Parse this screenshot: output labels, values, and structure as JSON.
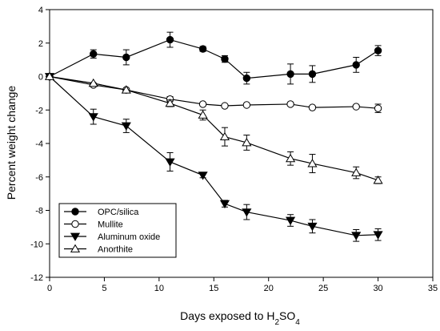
{
  "chart_data": {
    "type": "line",
    "title": "",
    "xlabel_main": "Days exposed to H",
    "xlabel_sub": "2",
    "xlabel_tail": "SO",
    "xlabel_sub2": "4",
    "ylabel": "Percent weight change",
    "xlim": [
      0,
      35
    ],
    "ylim": [
      -12,
      4
    ],
    "xticks": [
      "0",
      "5",
      "10",
      "15",
      "20",
      "25",
      "30",
      "35"
    ],
    "yticks": [
      "4",
      "2",
      "0",
      "-2",
      "-4",
      "-6",
      "-8",
      "-10",
      "-12"
    ],
    "grid": false,
    "legend_position": "bottom-left",
    "x": [
      0,
      4,
      7,
      11,
      14,
      16,
      18,
      22,
      24,
      28,
      30
    ],
    "series": [
      {
        "name": "OPC/silica",
        "marker": "filled-circle",
        "values": [
          0,
          1.35,
          1.15,
          2.2,
          1.65,
          1.05,
          -0.1,
          0.15,
          0.15,
          0.7,
          1.55
        ],
        "errors": [
          0.1,
          0.25,
          0.45,
          0.45,
          0.15,
          0.2,
          0.35,
          0.6,
          0.5,
          0.45,
          0.3
        ]
      },
      {
        "name": "Mullite",
        "marker": "open-circle",
        "values": [
          0,
          -0.5,
          -0.8,
          -1.35,
          -1.65,
          -1.75,
          -1.7,
          -1.65,
          -1.85,
          -1.8,
          -1.9
        ],
        "errors": [
          0.1,
          0.1,
          0.1,
          0.15,
          0.1,
          0.1,
          0.1,
          0.1,
          0.1,
          0.1,
          0.25
        ]
      },
      {
        "name": "Aluminum oxide",
        "marker": "filled-triangle-down",
        "values": [
          0,
          -2.4,
          -2.95,
          -5.1,
          -5.9,
          -7.6,
          -8.1,
          -8.6,
          -8.95,
          -9.5,
          -9.45
        ],
        "errors": [
          0.1,
          0.45,
          0.4,
          0.55,
          0.15,
          0.2,
          0.45,
          0.35,
          0.4,
          0.35,
          0.35
        ]
      },
      {
        "name": "Anorthite",
        "marker": "open-triangle-up",
        "values": [
          0,
          -0.4,
          -0.8,
          -1.6,
          -2.3,
          -3.6,
          -3.95,
          -4.9,
          -5.2,
          -5.75,
          -6.2
        ],
        "errors": [
          0.1,
          0.1,
          0.1,
          0.2,
          0.3,
          0.55,
          0.45,
          0.4,
          0.55,
          0.35,
          0.2
        ]
      }
    ]
  }
}
